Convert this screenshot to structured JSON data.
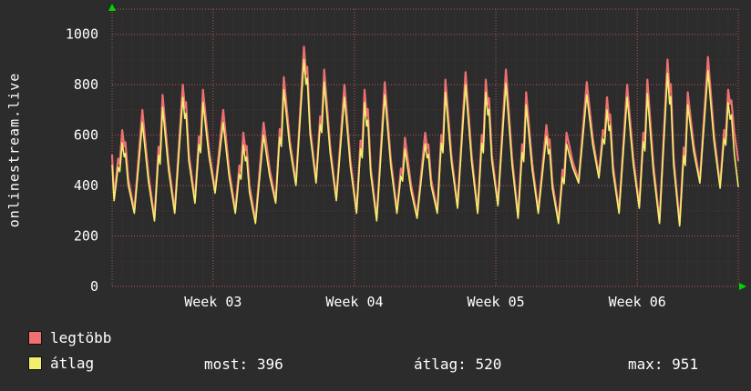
{
  "app": {
    "vertical_title": "onlinestream.live"
  },
  "chart_data": {
    "type": "line",
    "title": "onlinestream.live",
    "ylim": [
      0,
      1100
    ],
    "yticks": [
      0,
      200,
      400,
      600,
      800,
      1000
    ],
    "x_range": [
      0,
      31
    ],
    "x_unit": "day",
    "grid": {
      "minor_color": "#6e4040",
      "major_color": "#c85a5a",
      "arrow_color": "#00d400"
    },
    "x_week_labels": [
      {
        "label": "Week 03",
        "day": 5
      },
      {
        "label": "Week 04",
        "day": 12
      },
      {
        "label": "Week 05",
        "day": 19
      },
      {
        "label": "Week 06",
        "day": 26
      }
    ],
    "series": [
      {
        "name": "legtöbb",
        "color": "#ee7070",
        "start": 520,
        "end": 500,
        "daily_peaks": [
          620,
          700,
          760,
          800,
          780,
          700,
          610,
          650,
          830,
          951,
          860,
          800,
          780,
          810,
          590,
          610,
          820,
          850,
          820,
          860,
          770,
          640,
          610,
          810,
          750,
          800,
          820,
          900,
          770,
          910,
          780
        ],
        "daily_troughs": [
          350,
          300,
          270,
          300,
          340,
          380,
          300,
          260,
          340,
          410,
          420,
          350,
          300,
          270,
          300,
          280,
          300,
          320,
          300,
          330,
          280,
          300,
          260,
          420,
          440,
          300,
          320,
          260,
          250,
          420,
          400
        ]
      },
      {
        "name": "átlag",
        "color": "#f2ef6f",
        "start": 480,
        "end": 396,
        "daily_peaks": [
          570,
          650,
          710,
          750,
          730,
          650,
          560,
          600,
          780,
          900,
          810,
          750,
          730,
          760,
          545,
          565,
          770,
          800,
          770,
          805,
          720,
          595,
          565,
          760,
          700,
          750,
          765,
          845,
          720,
          855,
          730
        ],
        "daily_troughs": [
          340,
          290,
          260,
          290,
          330,
          370,
          290,
          250,
          330,
          400,
          410,
          340,
          290,
          260,
          290,
          270,
          290,
          310,
          290,
          320,
          270,
          290,
          250,
          410,
          430,
          290,
          310,
          250,
          240,
          410,
          390
        ]
      }
    ],
    "summary": [
      {
        "label": "most:",
        "value": "396"
      },
      {
        "label": "átlag:",
        "value": "520"
      },
      {
        "label": "max:",
        "value": "951"
      }
    ]
  }
}
